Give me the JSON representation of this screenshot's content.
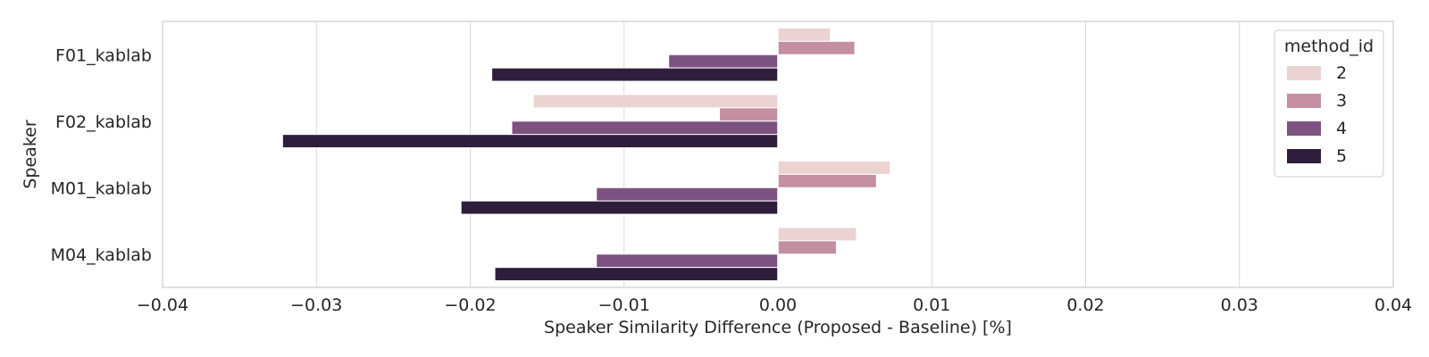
{
  "chart_data": {
    "type": "bar",
    "orientation": "horizontal",
    "title": "",
    "xlabel": "Speaker Similarity Difference (Proposed - Baseline) [%]",
    "ylabel": "Speaker",
    "xlim": [
      -0.04,
      0.04
    ],
    "xticks": [
      -0.04,
      -0.03,
      -0.02,
      -0.01,
      0.0,
      0.01,
      0.02,
      0.03,
      0.04
    ],
    "xtick_labels": [
      "−0.04",
      "−0.03",
      "−0.02",
      "−0.01",
      "0.00",
      "0.01",
      "0.02",
      "0.03",
      "0.04"
    ],
    "categories": [
      "F01_kablab",
      "F02_kablab",
      "M01_kablab",
      "M04_kablab"
    ],
    "grid": true,
    "legend": {
      "title": "method_id",
      "placement": "top-right"
    },
    "series": [
      {
        "name": "2",
        "color": "#ead3d0",
        "values": [
          0.0034,
          -0.0159,
          0.0073,
          0.0051
        ]
      },
      {
        "name": "3",
        "color": "#c38fa1",
        "values": [
          0.005,
          -0.0038,
          0.0064,
          0.0038
        ]
      },
      {
        "name": "4",
        "color": "#7d5280",
        "values": [
          -0.0071,
          -0.0173,
          -0.0118,
          -0.0118
        ]
      },
      {
        "name": "5",
        "color": "#2e1e3c",
        "values": [
          -0.0186,
          -0.0322,
          -0.0206,
          -0.0184
        ]
      }
    ]
  }
}
